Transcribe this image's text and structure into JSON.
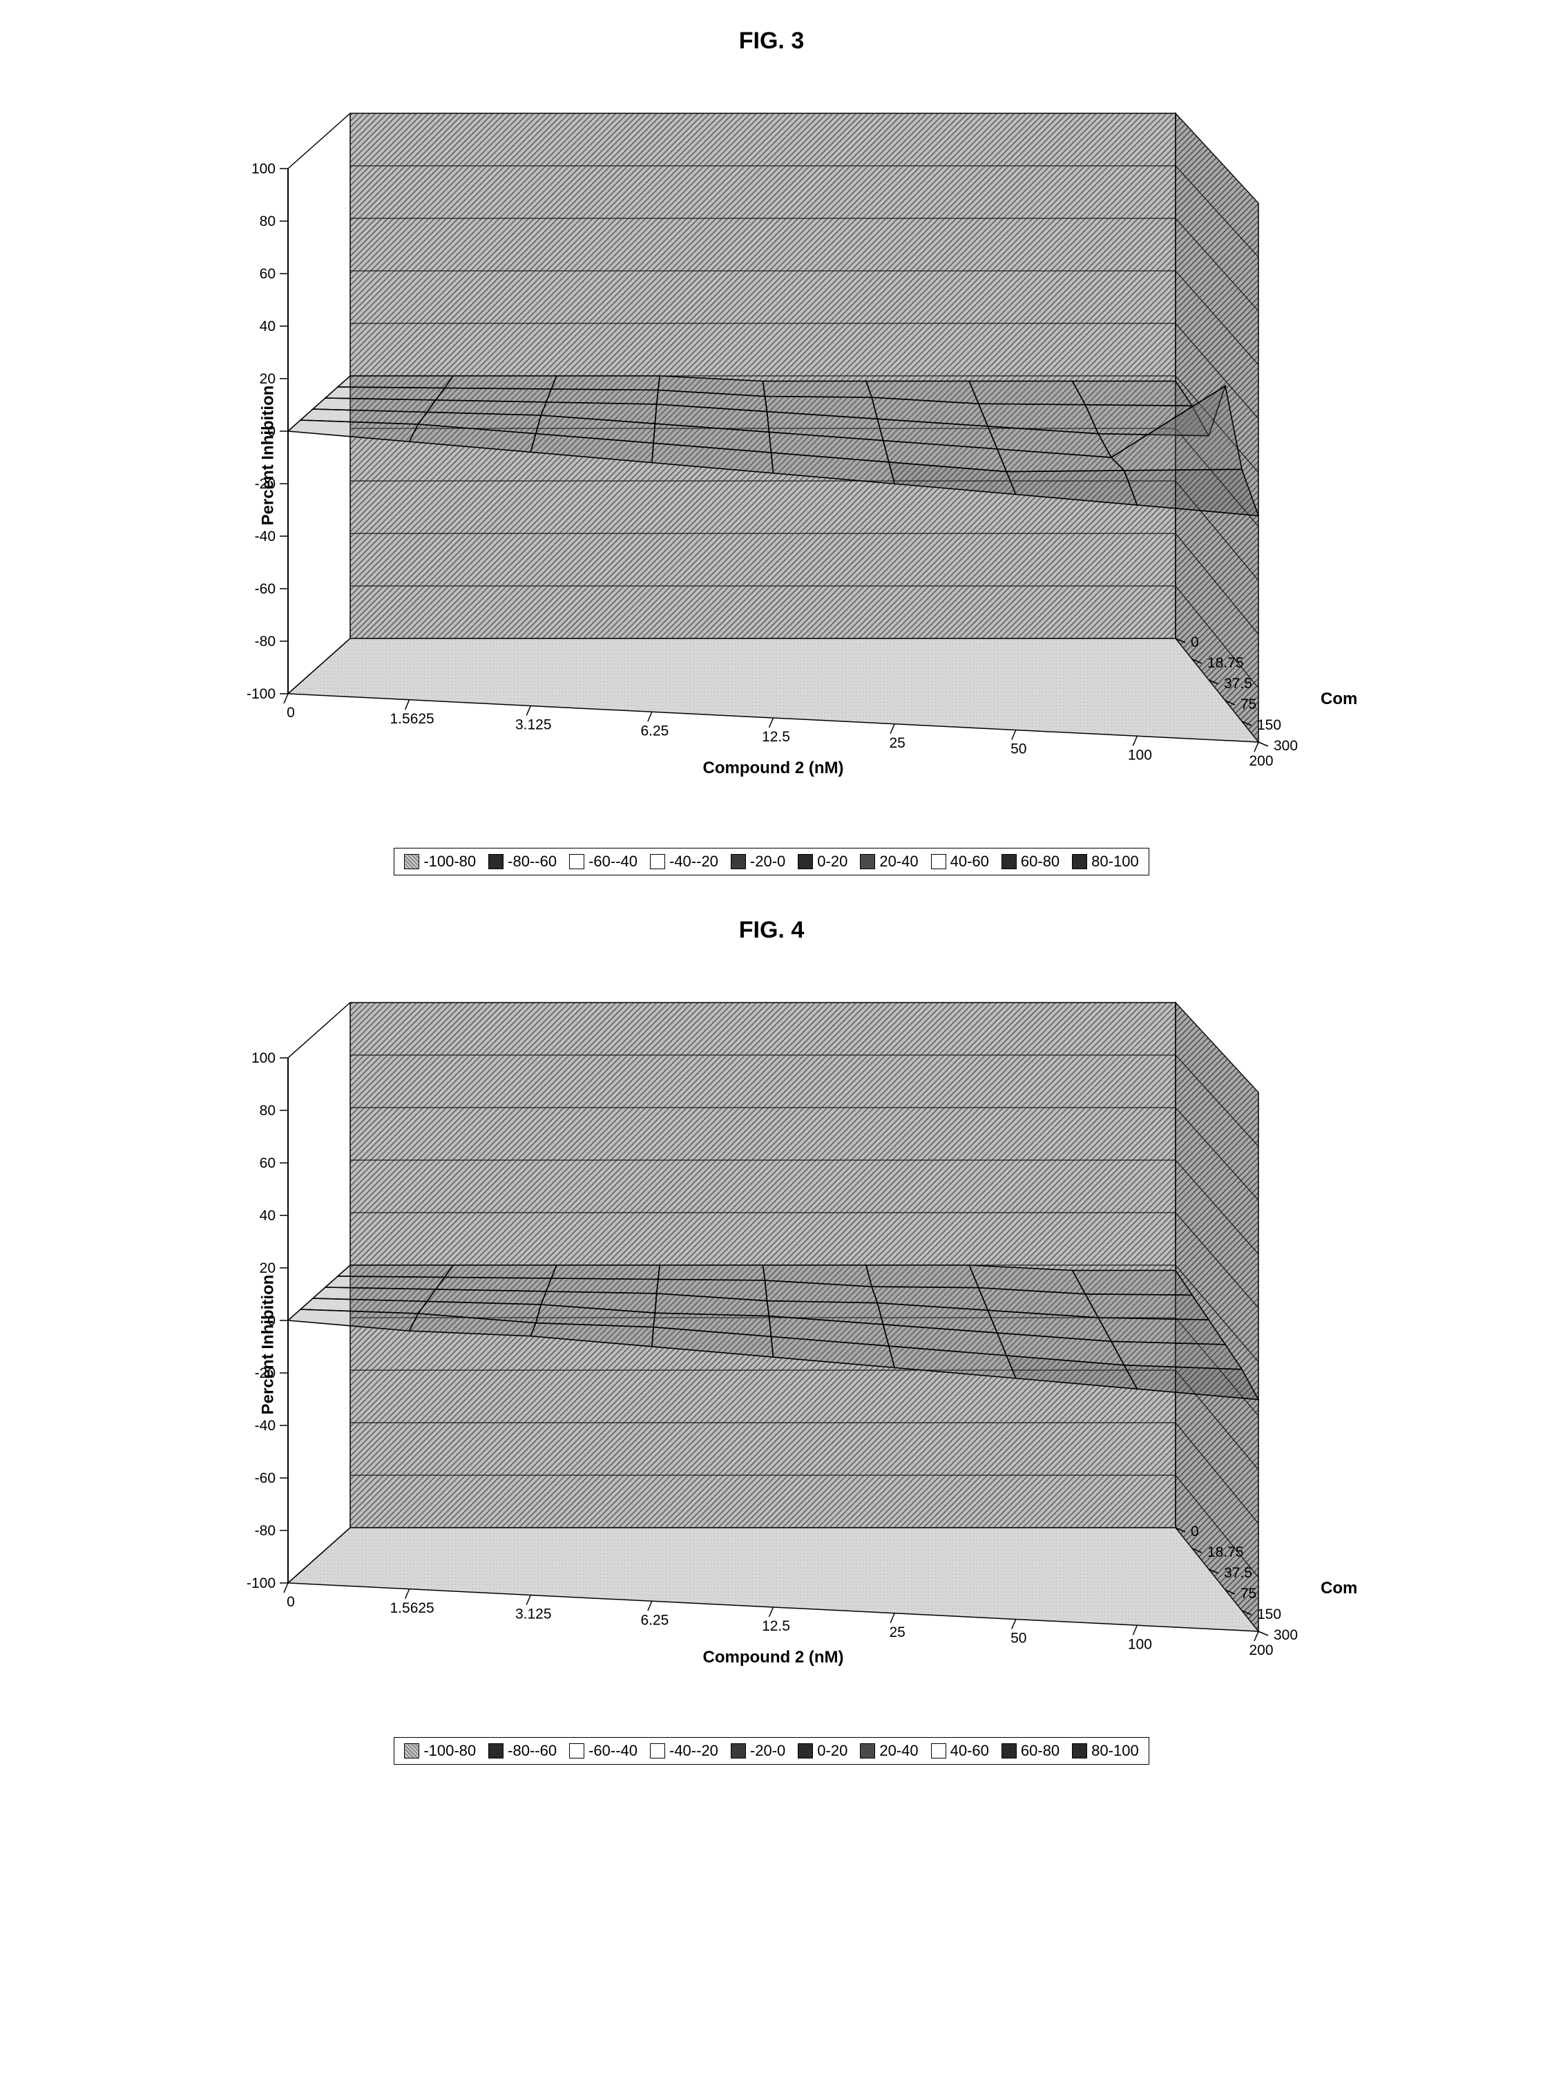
{
  "figures": [
    {
      "title": "FIG. 3",
      "type": "3d_surface",
      "z_axis": {
        "label": "Percent Inhibition",
        "min": -100,
        "max": 100,
        "ticks": [
          -100,
          -80,
          -60,
          -40,
          -20,
          0,
          20,
          40,
          60,
          80,
          100
        ]
      },
      "x_axis": {
        "label": "Compound 2 (nM)",
        "ticks": [
          "0",
          "1.5625",
          "3.125",
          "6.25",
          "12.5",
          "25",
          "50",
          "100",
          "200"
        ]
      },
      "y_axis": {
        "label": "Compound O (nM)",
        "ticks": [
          "0",
          "18.75",
          "37.5",
          "75",
          "150",
          "300"
        ]
      },
      "surface": {
        "rows": 6,
        "cols": 9,
        "zvals": [
          [
            0,
            0,
            0,
            0,
            -2,
            -2,
            -2,
            -2,
            -2
          ],
          [
            0,
            0,
            0,
            0,
            -2,
            -2,
            -4,
            -4,
            -4
          ],
          [
            0,
            0,
            0,
            0,
            -2,
            -4,
            -6,
            -8,
            -8
          ],
          [
            0,
            0,
            0,
            -2,
            -4,
            -6,
            -8,
            -10,
            18
          ],
          [
            0,
            0,
            -2,
            -4,
            -6,
            -8,
            -10,
            -8,
            -6
          ],
          [
            0,
            -2,
            -4,
            -6,
            -8,
            -10,
            -12,
            -14,
            -16
          ]
        ]
      },
      "colors": {
        "wall_hatch_dark": "#5a5a5a",
        "wall_hatch_light": "#bdbdbd",
        "floor_light": "#d8d8d8",
        "floor_mid": "#c0c0c0",
        "gridline": "#1a1a1a",
        "surface_stroke": "#000000",
        "surface_fill_dark": "#3a3a3a",
        "surface_fill_mid": "#6a6a6a",
        "surface_fill_light": "#9a9a9a",
        "background": "#ffffff"
      },
      "fonts": {
        "tick_size": 21,
        "label_size": 24,
        "title_size": 34
      }
    },
    {
      "title": "FIG. 4",
      "type": "3d_surface",
      "z_axis": {
        "label": "Percent Inhibition",
        "min": -100,
        "max": 100,
        "ticks": [
          -100,
          -80,
          -60,
          -40,
          -20,
          0,
          20,
          40,
          60,
          80,
          100
        ]
      },
      "x_axis": {
        "label": "Compound 2 (nM)",
        "ticks": [
          "0",
          "1.5625",
          "3.125",
          "6.25",
          "12.5",
          "25",
          "50",
          "100",
          "200"
        ]
      },
      "y_axis": {
        "label": "Compound O (nM)",
        "ticks": [
          "0",
          "18.75",
          "37.5",
          "75",
          "150",
          "300"
        ]
      },
      "surface": {
        "rows": 6,
        "cols": 9,
        "zvals": [
          [
            0,
            0,
            0,
            0,
            0,
            0,
            0,
            -2,
            -2
          ],
          [
            0,
            0,
            0,
            0,
            0,
            -2,
            -2,
            -4,
            -4
          ],
          [
            0,
            0,
            0,
            0,
            -2,
            -2,
            -4,
            -6,
            -6
          ],
          [
            0,
            0,
            0,
            -2,
            -2,
            -4,
            -6,
            -8,
            -8
          ],
          [
            0,
            0,
            -2,
            -2,
            -4,
            -6,
            -8,
            -10,
            -10
          ],
          [
            0,
            -2,
            -2,
            -4,
            -6,
            -8,
            -10,
            -12,
            -14
          ]
        ]
      },
      "colors": {
        "wall_hatch_dark": "#5a5a5a",
        "wall_hatch_light": "#bdbdbd",
        "floor_light": "#d8d8d8",
        "floor_mid": "#c0c0c0",
        "gridline": "#1a1a1a",
        "surface_stroke": "#000000",
        "surface_fill_dark": "#3a3a3a",
        "surface_fill_mid": "#6a6a6a",
        "surface_fill_light": "#9a9a9a",
        "background": "#ffffff"
      },
      "fonts": {
        "tick_size": 21,
        "label_size": 24,
        "title_size": 34
      }
    }
  ],
  "legend": {
    "items": [
      {
        "label": "-100-80",
        "fill": "pattern-dots",
        "color": "#808080"
      },
      {
        "label": "-80--60",
        "fill": "solid",
        "color": "#2a2a2a"
      },
      {
        "label": "-60--40",
        "fill": "solid",
        "color": "#ffffff"
      },
      {
        "label": "-40--20",
        "fill": "solid",
        "color": "#ffffff"
      },
      {
        "label": "-20-0",
        "fill": "solid",
        "color": "#3a3a3a"
      },
      {
        "label": "0-20",
        "fill": "solid",
        "color": "#2a2a2a"
      },
      {
        "label": "20-40",
        "fill": "solid",
        "color": "#4a4a4a"
      },
      {
        "label": "40-60",
        "fill": "solid",
        "color": "#ffffff"
      },
      {
        "label": "60-80",
        "fill": "solid",
        "color": "#2a2a2a"
      },
      {
        "label": "80-100",
        "fill": "solid",
        "color": "#2a2a2a"
      }
    ]
  }
}
